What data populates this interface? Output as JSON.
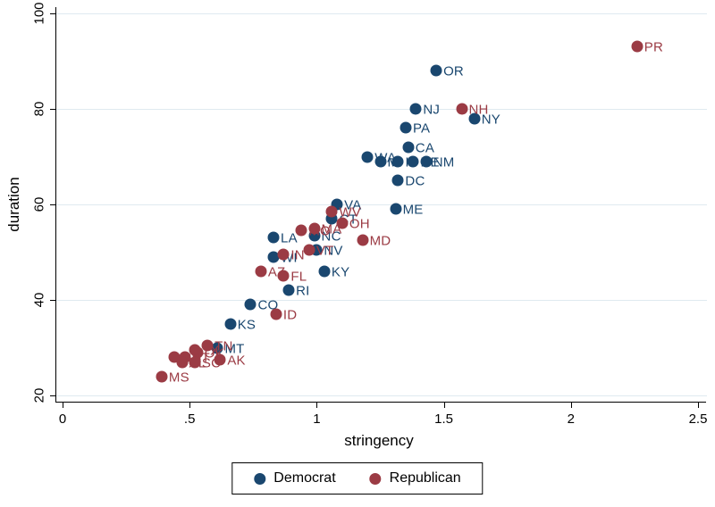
{
  "chart_data": {
    "type": "scatter",
    "title": "",
    "xlabel": "stringency",
    "ylabel": "duration",
    "xlim": [
      0,
      2.5
    ],
    "ylim": [
      20,
      100
    ],
    "xticks": [
      0,
      0.5,
      1,
      1.5,
      2,
      2.5
    ],
    "xtick_labels": [
      "0",
      ".5",
      "1",
      "1.5",
      "2",
      "2.5"
    ],
    "yticks": [
      20,
      40,
      60,
      80,
      100
    ],
    "ytick_labels": [
      "20",
      "40",
      "60",
      "80",
      "100"
    ],
    "grid": "horizontal",
    "gridline_color": "#dfeaf0",
    "legend_position": "bottom-center",
    "series": [
      {
        "name": "Democrat",
        "color": "#1a476f",
        "points": [
          {
            "label": "OR",
            "x": 1.47,
            "y": 88
          },
          {
            "label": "NJ",
            "x": 1.39,
            "y": 80
          },
          {
            "label": "NY",
            "x": 1.62,
            "y": 78
          },
          {
            "label": "PA",
            "x": 1.35,
            "y": 76
          },
          {
            "label": "CA",
            "x": 1.36,
            "y": 72
          },
          {
            "label": "WA",
            "x": 1.2,
            "y": 70
          },
          {
            "label": "MI",
            "x": 1.25,
            "y": 69
          },
          {
            "label": "IL",
            "x": 1.32,
            "y": 69
          },
          {
            "label": "DE",
            "x": 1.38,
            "y": 69
          },
          {
            "label": "NM",
            "x": 1.43,
            "y": 69
          },
          {
            "label": "DC",
            "x": 1.32,
            "y": 65
          },
          {
            "label": "VA",
            "x": 1.08,
            "y": 60
          },
          {
            "label": "ME",
            "x": 1.31,
            "y": 59
          },
          {
            "label": "CT",
            "x": 1.06,
            "y": 57
          },
          {
            "label": "NC",
            "x": 0.99,
            "y": 53.5
          },
          {
            "label": "LA",
            "x": 0.83,
            "y": 53
          },
          {
            "label": "NV",
            "x": 1.0,
            "y": 50.5
          },
          {
            "label": "WI",
            "x": 0.83,
            "y": 49
          },
          {
            "label": "KY",
            "x": 1.03,
            "y": 46
          },
          {
            "label": "RI",
            "x": 0.89,
            "y": 42
          },
          {
            "label": "CO",
            "x": 0.74,
            "y": 39
          },
          {
            "label": "KS",
            "x": 0.66,
            "y": 35
          },
          {
            "label": "MT",
            "x": 0.61,
            "y": 30
          }
        ]
      },
      {
        "name": "Republican",
        "color": "#9b3b44",
        "points": [
          {
            "label": "PR",
            "x": 2.26,
            "y": 93
          },
          {
            "label": "NH",
            "x": 1.57,
            "y": 80
          },
          {
            "label": "WV",
            "x": 1.06,
            "y": 58.5
          },
          {
            "label": "OH",
            "x": 1.1,
            "y": 56
          },
          {
            "label": "MA",
            "x": 0.99,
            "y": 55
          },
          {
            "label": "MO",
            "x": 0.94,
            "y": 54.5
          },
          {
            "label": "MD",
            "x": 1.18,
            "y": 52.5
          },
          {
            "label": "VT",
            "x": 0.97,
            "y": 50.5
          },
          {
            "label": "IN",
            "x": 0.87,
            "y": 49.5
          },
          {
            "label": "AZ",
            "x": 0.78,
            "y": 46
          },
          {
            "label": "FL",
            "x": 0.87,
            "y": 45
          },
          {
            "label": "ID",
            "x": 0.84,
            "y": 37
          },
          {
            "label": "TN",
            "x": 0.57,
            "y": 30.5
          },
          {
            "label": "TX",
            "x": 0.52,
            "y": 29.5
          },
          {
            "label": "OK",
            "x": 0.53,
            "y": 29
          },
          {
            "label": "GA",
            "x": 0.44,
            "y": 28
          },
          {
            "label": "UT",
            "x": 0.48,
            "y": 28
          },
          {
            "label": "AL",
            "x": 0.47,
            "y": 27
          },
          {
            "label": "SC",
            "x": 0.52,
            "y": 27
          },
          {
            "label": "AK",
            "x": 0.62,
            "y": 27.5
          },
          {
            "label": "MS",
            "x": 0.39,
            "y": 24
          }
        ]
      }
    ]
  },
  "legend": {
    "democrat_label": "Democrat",
    "republican_label": "Republican"
  }
}
